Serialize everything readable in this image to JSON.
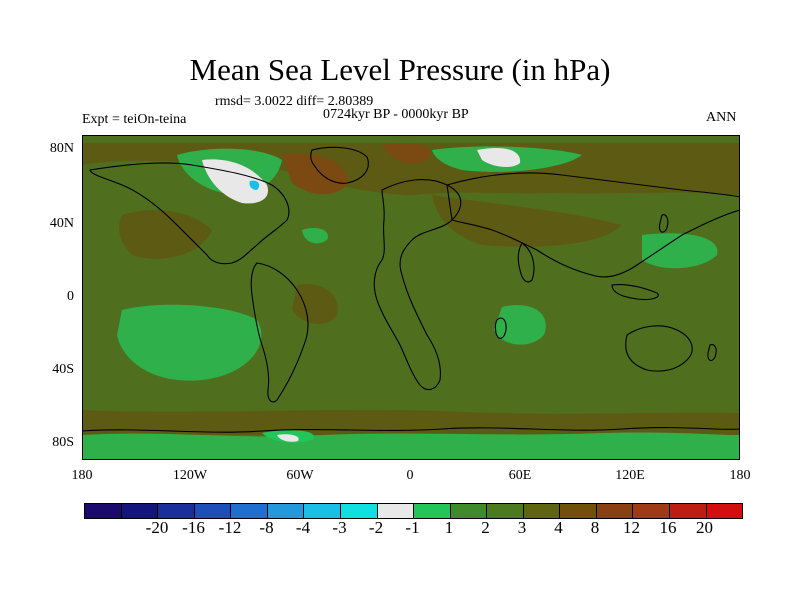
{
  "title": "Mean Sea Level Pressure (in hPa)",
  "stats_line": "rmsd= 3.0022 diff= 2.80389",
  "period": "0724kyr BP - 0000kyr BP",
  "experiment": "Expt = teiOn-teina",
  "season": "ANN",
  "lat_labels": [
    "80N",
    "40N",
    "0",
    "40S",
    "80S"
  ],
  "lon_labels": [
    "180",
    "120W",
    "60W",
    "0",
    "60E",
    "120E",
    "180"
  ],
  "colorbar": {
    "colors": [
      "#1a0a6e",
      "#14147e",
      "#1a2e9c",
      "#1c4fb8",
      "#1f6fd0",
      "#2398dc",
      "#19bfe6",
      "#11e0e3",
      "#e8e8e8",
      "#22c55a",
      "#3f8a2a",
      "#4d7a1f",
      "#5e6410",
      "#70500a",
      "#8a4010",
      "#a03a14",
      "#be1e12",
      "#d20f0c"
    ],
    "labels": [
      "-20",
      "-16",
      "-12",
      "-8",
      "-4",
      "-3",
      "-2",
      "-1",
      "1",
      "2",
      "3",
      "4",
      "8",
      "12",
      "16",
      "20"
    ]
  },
  "map_colors": {
    "background": "#4f6f1f",
    "level_4_8": "#5d5a14",
    "level_8_12": "#7a4a12",
    "level_12_16": "#8b3a14",
    "level_2_3": "#2fb04a",
    "level_1_2": "#22c55a",
    "level_neg": "#e8e8e8",
    "level_deep": "#19bfe6"
  }
}
